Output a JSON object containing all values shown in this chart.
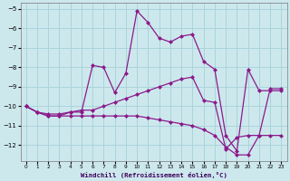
{
  "xlabel": "Windchill (Refroidissement éolien,°C)",
  "background_color": "#cde8ed",
  "grid_color": "#a8d4db",
  "line_color": "#8b1a8b",
  "xlim": [
    -0.5,
    23.5
  ],
  "ylim": [
    -12.8,
    -4.7
  ],
  "yticks": [
    -12,
    -11,
    -10,
    -9,
    -8,
    -7,
    -6,
    -5
  ],
  "xticks": [
    0,
    1,
    2,
    3,
    4,
    5,
    6,
    7,
    8,
    9,
    10,
    11,
    12,
    13,
    14,
    15,
    16,
    17,
    18,
    19,
    20,
    21,
    22,
    23
  ],
  "series1_x": [
    0,
    1,
    2,
    3,
    4,
    5,
    6,
    7,
    8,
    9,
    10,
    11,
    12,
    13,
    14,
    15,
    16,
    17,
    18,
    19,
    20,
    21,
    22,
    23
  ],
  "series1_y": [
    -10.0,
    -10.3,
    -10.5,
    -10.5,
    -10.3,
    -10.3,
    -7.9,
    -8.0,
    -9.3,
    -8.3,
    -5.1,
    -5.7,
    -6.5,
    -6.7,
    -6.4,
    -6.3,
    -7.7,
    -8.1,
    -11.5,
    -12.3,
    -8.1,
    -9.2,
    -9.2,
    -9.2
  ],
  "series2_x": [
    0,
    1,
    2,
    3,
    4,
    5,
    6,
    7,
    8,
    9,
    10,
    11,
    12,
    13,
    14,
    15,
    16,
    17,
    18,
    19,
    20,
    21,
    22,
    23
  ],
  "series2_y": [
    -10.0,
    -10.3,
    -10.4,
    -10.4,
    -10.3,
    -10.2,
    -10.2,
    -10.0,
    -9.8,
    -9.6,
    -9.4,
    -9.2,
    -9.0,
    -8.8,
    -8.6,
    -8.5,
    -9.7,
    -9.8,
    -12.2,
    -11.6,
    -11.5,
    -11.5,
    -9.1,
    -9.1
  ],
  "series3_x": [
    0,
    1,
    2,
    3,
    4,
    5,
    6,
    7,
    8,
    9,
    10,
    11,
    12,
    13,
    14,
    15,
    16,
    17,
    18,
    19,
    20,
    21,
    22,
    23
  ],
  "series3_y": [
    -10.0,
    -10.3,
    -10.5,
    -10.5,
    -10.5,
    -10.5,
    -10.5,
    -10.5,
    -10.5,
    -10.5,
    -10.5,
    -10.6,
    -10.7,
    -10.8,
    -10.9,
    -11.0,
    -11.2,
    -11.5,
    -12.1,
    -12.5,
    -12.5,
    -11.5,
    -11.5,
    -11.5
  ]
}
